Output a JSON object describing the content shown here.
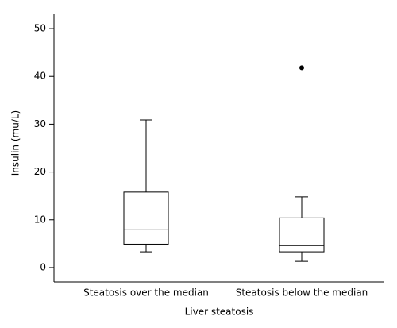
{
  "chart_data": {
    "type": "box",
    "y_label": "Insulin (mu/L)",
    "x_label": "Liver steatosis",
    "categories": [
      "Steatosis over the median",
      "Steatosis below the median"
    ],
    "whislo": [
      3.3,
      1.3
    ],
    "q1": [
      4.9,
      3.3
    ],
    "med": [
      7.9,
      4.6
    ],
    "q3": [
      15.8,
      10.4
    ],
    "whishi": [
      30.9,
      14.8
    ],
    "outliers": [
      [],
      [
        41.8
      ]
    ],
    "ylim": [
      -3,
      53
    ],
    "yticks": [
      0,
      10,
      20,
      30,
      40,
      50
    ],
    "grid": false,
    "color": "#ffffff"
  }
}
